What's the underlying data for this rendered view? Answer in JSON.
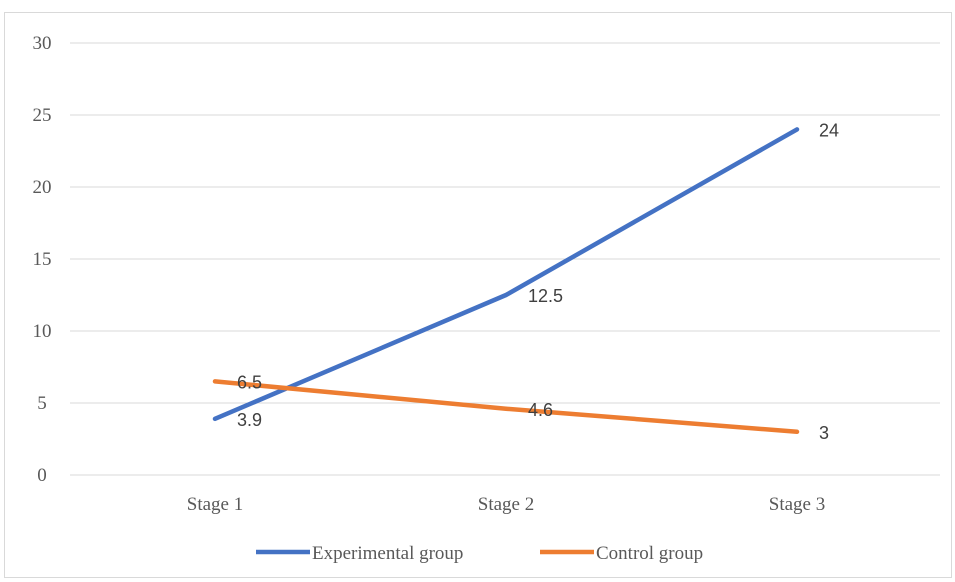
{
  "chart_data": {
    "type": "line",
    "title": "",
    "xlabel": "",
    "ylabel": "",
    "categories": [
      "Stage 1",
      "Stage 2",
      "Stage 3"
    ],
    "ylim": [
      0,
      30
    ],
    "yticks": [
      "0",
      "5",
      "10",
      "15",
      "20",
      "25",
      "30"
    ],
    "grid": true,
    "legend_position": "bottom",
    "series": [
      {
        "name": "Experimental group",
        "values": [
          3.9,
          12.5,
          24
        ],
        "labels": [
          "3.9",
          "12.5",
          "24"
        ],
        "color": "#4472c4"
      },
      {
        "name": "Control group",
        "values": [
          6.5,
          4.6,
          3
        ],
        "labels": [
          "6.5",
          "4.6",
          "3"
        ],
        "color": "#ed7d31"
      }
    ]
  }
}
